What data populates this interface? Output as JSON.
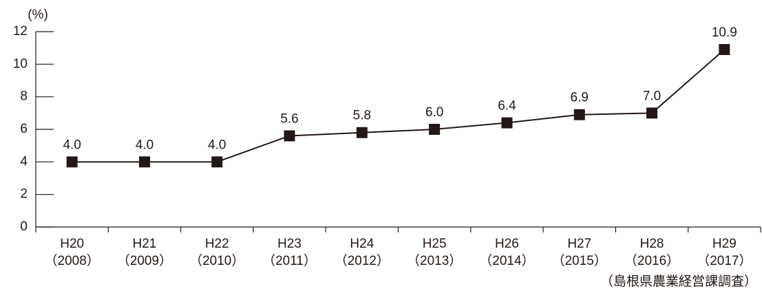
{
  "chart_data": {
    "type": "line",
    "y_unit": "(%)",
    "source": "（島根県農業経営課調査）",
    "categories": [
      [
        "H20",
        "（2008）"
      ],
      [
        "H21",
        "（2009）"
      ],
      [
        "H22",
        "（2010）"
      ],
      [
        "H23",
        "（2011）"
      ],
      [
        "H24",
        "（2012）"
      ],
      [
        "H25",
        "（2013）"
      ],
      [
        "H26",
        "（2014）"
      ],
      [
        "H27",
        "（2015）"
      ],
      [
        "H28",
        "（2016）"
      ],
      [
        "H29",
        "（2017）"
      ]
    ],
    "series": [
      {
        "color": "#231815",
        "values": [
          4.0,
          4.0,
          4.0,
          5.6,
          5.8,
          6.0,
          6.4,
          6.9,
          7.0,
          10.9
        ],
        "value_labels": [
          "4.0",
          "4.0",
          "4.0",
          "5.6",
          "5.8",
          "6.0",
          "6.4",
          "6.9",
          "7.0",
          "10.9"
        ]
      }
    ],
    "ylim": [
      0,
      12
    ],
    "yticks": [
      0,
      2,
      4,
      6,
      8,
      10,
      12
    ]
  }
}
